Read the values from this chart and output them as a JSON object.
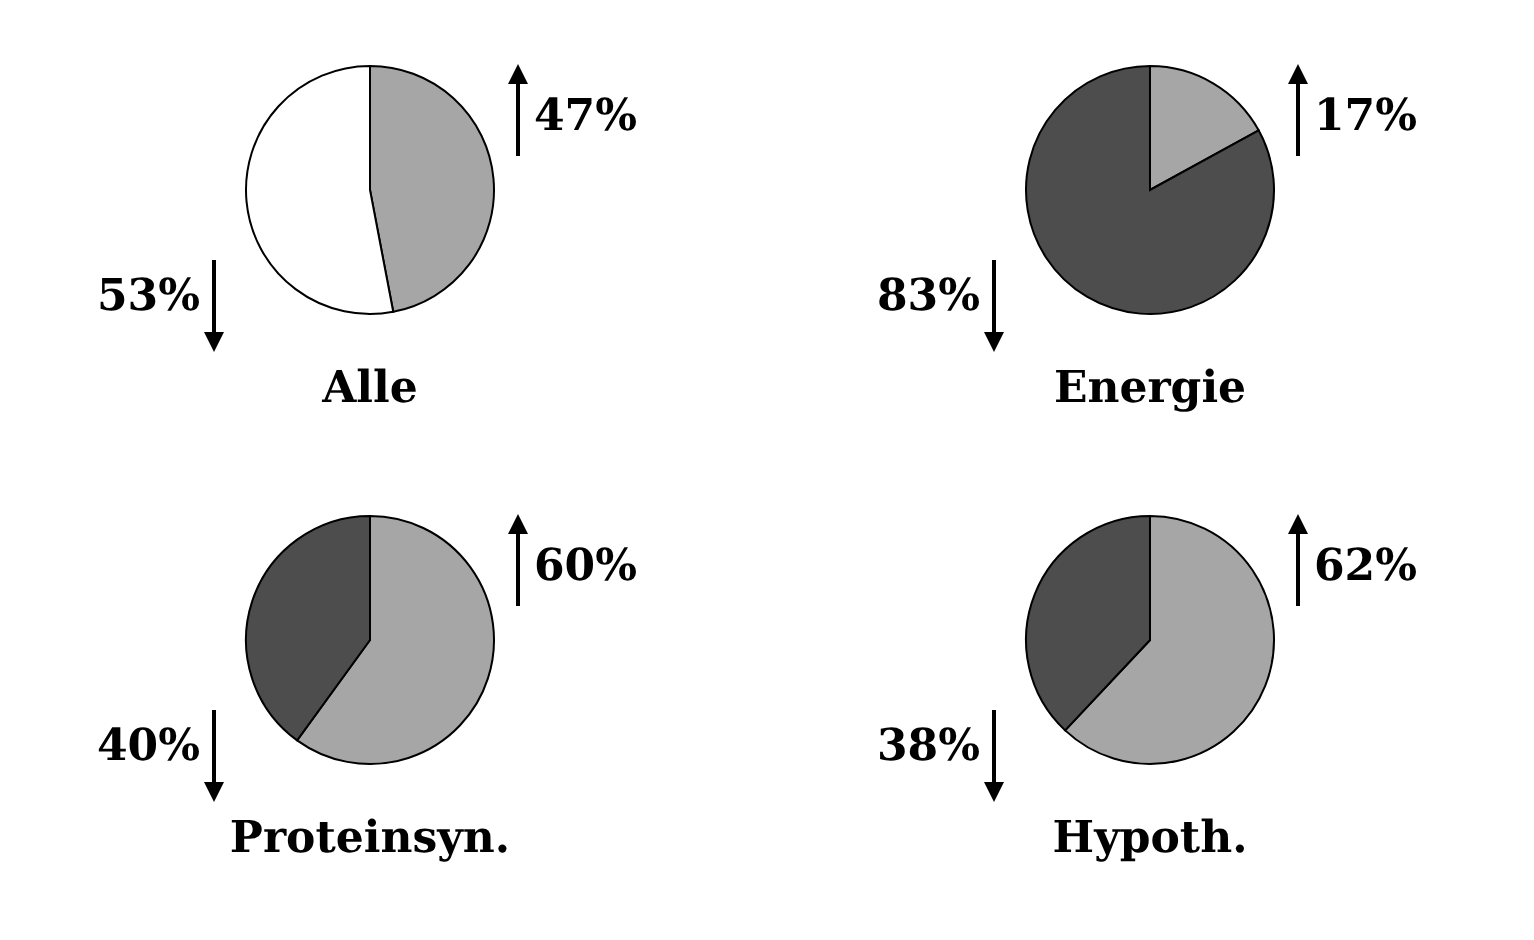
{
  "chart_data": [
    {
      "type": "pie",
      "title": "Alle",
      "categories": [
        null,
        null
      ],
      "values": [
        47,
        53
      ],
      "colors": [
        "#a6a6a6",
        "#ffffff"
      ],
      "value_labels": [
        "47%",
        "53%"
      ]
    },
    {
      "type": "pie",
      "title": "Energie",
      "categories": [
        null,
        null
      ],
      "values": [
        17,
        83
      ],
      "colors": [
        "#a6a6a6",
        "#4d4d4d"
      ],
      "value_labels": [
        "17%",
        "83%"
      ]
    },
    {
      "type": "pie",
      "title": "Proteinsyn.",
      "categories": [
        null,
        null
      ],
      "values": [
        60,
        40
      ],
      "colors": [
        "#a6a6a6",
        "#4d4d4d"
      ],
      "value_labels": [
        "60%",
        "40%"
      ]
    },
    {
      "type": "pie",
      "title": "Hypoth.",
      "categories": [
        null,
        null
      ],
      "values": [
        62,
        38
      ],
      "colors": [
        "#a6a6a6",
        "#4d4d4d"
      ],
      "value_labels": [
        "62%",
        "38%"
      ]
    }
  ]
}
